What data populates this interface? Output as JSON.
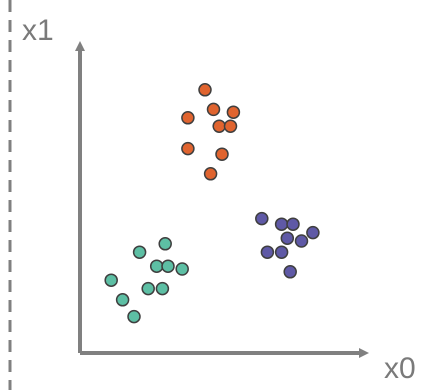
{
  "diagram": {
    "y_axis_label": "x1",
    "x_axis_label": "x0",
    "colors": {
      "axis": "#808080",
      "divider": "#808080",
      "label": "#7a7a7a",
      "point_stroke": "#3f3f3f"
    },
    "clusters": [
      {
        "name": "orange-cluster",
        "fill": "#e0642f",
        "points": [
          [
            4.4,
            9.4
          ],
          [
            4.7,
            8.7
          ],
          [
            5.4,
            8.6
          ],
          [
            3.8,
            8.4
          ],
          [
            4.9,
            8.1
          ],
          [
            5.3,
            8.1
          ],
          [
            3.8,
            7.3
          ],
          [
            5.0,
            7.1
          ],
          [
            4.6,
            6.4
          ]
        ]
      },
      {
        "name": "purple-cluster",
        "fill": "#5f59a6",
        "points": [
          [
            6.4,
            4.8
          ],
          [
            7.1,
            4.6
          ],
          [
            7.5,
            4.6
          ],
          [
            8.2,
            4.3
          ],
          [
            7.3,
            4.1
          ],
          [
            7.8,
            4.0
          ],
          [
            6.6,
            3.6
          ],
          [
            7.1,
            3.6
          ],
          [
            7.4,
            2.9
          ]
        ]
      },
      {
        "name": "teal-cluster",
        "fill": "#5dbfa4",
        "points": [
          [
            3.0,
            3.9
          ],
          [
            2.1,
            3.6
          ],
          [
            2.7,
            3.1
          ],
          [
            3.1,
            3.1
          ],
          [
            3.6,
            3.0
          ],
          [
            1.1,
            2.6
          ],
          [
            2.4,
            2.3
          ],
          [
            2.9,
            2.3
          ],
          [
            1.5,
            1.9
          ],
          [
            1.9,
            1.3
          ]
        ]
      }
    ]
  }
}
